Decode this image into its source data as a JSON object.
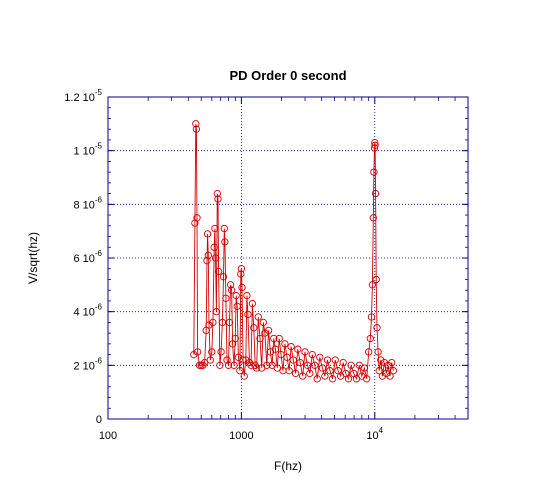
{
  "chart_data": {
    "type": "line",
    "title": "PD Order 0 second",
    "xlabel": "F(hz)",
    "ylabel": "V/sqrt(hz)",
    "x_scale": "log",
    "xlim": [
      100,
      50000
    ],
    "ylim": [
      0,
      1.2e-05
    ],
    "grid": true,
    "colors": {
      "series": "#d40000",
      "axes": "#00008b",
      "grid": "#00008b"
    },
    "x_ticks": [
      {
        "value": 100,
        "base": "100",
        "exp": ""
      },
      {
        "value": 1000,
        "base": "1000",
        "exp": ""
      },
      {
        "value": 10000,
        "base": "10",
        "exp": "4"
      }
    ],
    "y_ticks": [
      {
        "value": 0,
        "base": "0",
        "exp": ""
      },
      {
        "value": 2e-06,
        "base": "2 10",
        "exp": "-6"
      },
      {
        "value": 4e-06,
        "base": "4 10",
        "exp": "-6"
      },
      {
        "value": 6e-06,
        "base": "6 10",
        "exp": "-6"
      },
      {
        "value": 8e-06,
        "base": "8 10",
        "exp": "-6"
      },
      {
        "value": 1e-05,
        "base": "1 10",
        "exp": "-5"
      },
      {
        "value": 1.2e-05,
        "base": "1.2 10",
        "exp": "-5"
      }
    ],
    "series": [
      {
        "marker": "open-circle",
        "points": [
          [
            440,
            2.4e-06
          ],
          [
            448,
            7.3e-06
          ],
          [
            455,
            1.1e-05
          ],
          [
            460,
            1.08e-05
          ],
          [
            465,
            7.5e-06
          ],
          [
            470,
            2.5e-06
          ],
          [
            485,
            2e-06
          ],
          [
            500,
            2e-06
          ],
          [
            515,
            2e-06
          ],
          [
            530,
            2.1e-06
          ],
          [
            545,
            3.3e-06
          ],
          [
            552,
            5.9e-06
          ],
          [
            558,
            6.9e-06
          ],
          [
            565,
            6.1e-06
          ],
          [
            572,
            3.5e-06
          ],
          [
            585,
            2.2e-06
          ],
          [
            600,
            2.5e-06
          ],
          [
            612,
            3.6e-06
          ],
          [
            625,
            6.4e-06
          ],
          [
            633,
            7.1e-06
          ],
          [
            640,
            6e-06
          ],
          [
            650,
            4e-06
          ],
          [
            660,
            8.4e-06
          ],
          [
            668,
            8.2e-06
          ],
          [
            675,
            5.5e-06
          ],
          [
            690,
            2e-06
          ],
          [
            705,
            2.5e-06
          ],
          [
            720,
            3.6e-06
          ],
          [
            735,
            5.3e-06
          ],
          [
            745,
            7.1e-06
          ],
          [
            752,
            6.6e-06
          ],
          [
            765,
            4.5e-06
          ],
          [
            780,
            2.2e-06
          ],
          [
            800,
            2e-06
          ],
          [
            815,
            3.6e-06
          ],
          [
            830,
            5e-06
          ],
          [
            845,
            4.8e-06
          ],
          [
            860,
            2.8e-06
          ],
          [
            880,
            2e-06
          ],
          [
            900,
            3e-06
          ],
          [
            915,
            4.6e-06
          ],
          [
            930,
            4.2e-06
          ],
          [
            950,
            2.3e-06
          ],
          [
            975,
            1.8e-06
          ],
          [
            990,
            5.4e-06
          ],
          [
            1000,
            5.6e-06
          ],
          [
            1010,
            4.9e-06
          ],
          [
            1030,
            2.2e-06
          ],
          [
            1050,
            1.6e-06
          ],
          [
            1080,
            2.2e-06
          ],
          [
            1100,
            4.6e-06
          ],
          [
            1120,
            3.9e-06
          ],
          [
            1150,
            2.1e-06
          ],
          [
            1180,
            2e-06
          ],
          [
            1210,
            4.3e-06
          ],
          [
            1240,
            3.4e-06
          ],
          [
            1270,
            2e-06
          ],
          [
            1300,
            1.9e-06
          ],
          [
            1340,
            3.8e-06
          ],
          [
            1380,
            3e-06
          ],
          [
            1420,
            1.9e-06
          ],
          [
            1460,
            3.6e-06
          ],
          [
            1500,
            3.2e-06
          ],
          [
            1550,
            2e-06
          ],
          [
            1600,
            3.3e-06
          ],
          [
            1650,
            2.5e-06
          ],
          [
            1700,
            2e-06
          ],
          [
            1750,
            3e-06
          ],
          [
            1800,
            2.6e-06
          ],
          [
            1860,
            1.9e-06
          ],
          [
            1920,
            3e-06
          ],
          [
            1980,
            2.4e-06
          ],
          [
            2050,
            1.8e-06
          ],
          [
            2120,
            2.8e-06
          ],
          [
            2200,
            2.3e-06
          ],
          [
            2280,
            1.8e-06
          ],
          [
            2360,
            2.7e-06
          ],
          [
            2450,
            2.2e-06
          ],
          [
            2550,
            1.7e-06
          ],
          [
            2650,
            2.6e-06
          ],
          [
            2760,
            2.1e-06
          ],
          [
            2880,
            1.6e-06
          ],
          [
            3000,
            2.5e-06
          ],
          [
            3130,
            2e-06
          ],
          [
            3260,
            1.7e-06
          ],
          [
            3400,
            2.4e-06
          ],
          [
            3550,
            2e-06
          ],
          [
            3700,
            1.5e-06
          ],
          [
            3870,
            2.3e-06
          ],
          [
            4050,
            1.9e-06
          ],
          [
            4230,
            1.6e-06
          ],
          [
            4420,
            2.2e-06
          ],
          [
            4620,
            1.8e-06
          ],
          [
            4830,
            1.5e-06
          ],
          [
            5050,
            2.2e-06
          ],
          [
            5300,
            1.8e-06
          ],
          [
            5550,
            1.6e-06
          ],
          [
            5800,
            2.1e-06
          ],
          [
            6050,
            1.7e-06
          ],
          [
            6350,
            1.5e-06
          ],
          [
            6650,
            2e-06
          ],
          [
            6950,
            1.7e-06
          ],
          [
            7300,
            1.5e-06
          ],
          [
            7650,
            2e-06
          ],
          [
            8000,
            1.6e-06
          ],
          [
            8350,
            1.9e-06
          ],
          [
            8700,
            1.5e-06
          ],
          [
            9000,
            2.5e-06
          ],
          [
            9250,
            3e-06
          ],
          [
            9450,
            3.8e-06
          ],
          [
            9600,
            5e-06
          ],
          [
            9750,
            7.5e-06
          ],
          [
            9850,
            9.2e-06
          ],
          [
            9950,
            1.01e-05
          ],
          [
            10000,
            1.03e-05
          ],
          [
            10050,
            1.02e-05
          ],
          [
            10150,
            8.4e-06
          ],
          [
            10250,
            5.2e-06
          ],
          [
            10400,
            3.4e-06
          ],
          [
            10600,
            2.5e-06
          ],
          [
            10800,
            1.8e-06
          ],
          [
            11100,
            2.2e-06
          ],
          [
            11400,
            1.6e-06
          ],
          [
            11800,
            2.1e-06
          ],
          [
            12200,
            1.7e-06
          ],
          [
            12600,
            2e-06
          ],
          [
            13000,
            1.6e-06
          ],
          [
            13400,
            2.1e-06
          ],
          [
            13800,
            1.8e-06
          ]
        ]
      }
    ]
  }
}
